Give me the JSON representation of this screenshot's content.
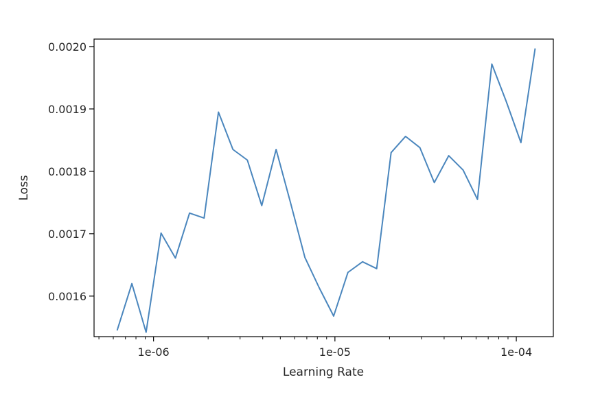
{
  "chart_data": {
    "type": "line",
    "xlabel": "Learning Rate",
    "ylabel": "Loss",
    "x_scale": "log",
    "xlim": [
      4.7e-07,
      0.00016
    ],
    "ylim": [
      0.001535,
      0.002012
    ],
    "grid": false,
    "x_ticks": [
      {
        "value": 1e-06,
        "label": "1e-06"
      },
      {
        "value": 1e-05,
        "label": "1e-05"
      },
      {
        "value": 0.0001,
        "label": "1e-04"
      }
    ],
    "y_ticks": [
      {
        "value": 0.0016,
        "label": "0.0016"
      },
      {
        "value": 0.0017,
        "label": "0.0017"
      },
      {
        "value": 0.0018,
        "label": "0.0018"
      },
      {
        "value": 0.0019,
        "label": "0.0019"
      },
      {
        "value": 0.002,
        "label": "0.0020"
      }
    ],
    "line_color": "#4a86bd",
    "series": [
      {
        "x": [
          6.3e-07,
          7.6e-07,
          9.1e-07,
          1.1e-06,
          1.32e-06,
          1.58e-06,
          1.9e-06,
          2.28e-06,
          2.74e-06,
          3.29e-06,
          3.95e-06,
          4.74e-06,
          5.69e-06,
          6.83e-06,
          8.2e-06,
          9.84e-06,
          1.18e-05,
          1.42e-05,
          1.7e-05,
          2.04e-05,
          2.45e-05,
          2.94e-05,
          3.53e-05,
          4.24e-05,
          5.09e-05,
          6.11e-05,
          7.33e-05,
          8.8e-05,
          0.000106,
          0.000127
        ],
        "y": [
          0.001545,
          0.00162,
          0.001542,
          0.001701,
          0.001661,
          0.001733,
          0.001725,
          0.001895,
          0.001835,
          0.001818,
          0.001745,
          0.001835,
          0.00175,
          0.001662,
          0.001613,
          0.001568,
          0.001638,
          0.001655,
          0.001644,
          0.00183,
          0.001856,
          0.001838,
          0.001782,
          0.001825,
          0.001802,
          0.001755,
          0.001972,
          0.001912,
          0.001846,
          0.001997
        ]
      }
    ]
  }
}
